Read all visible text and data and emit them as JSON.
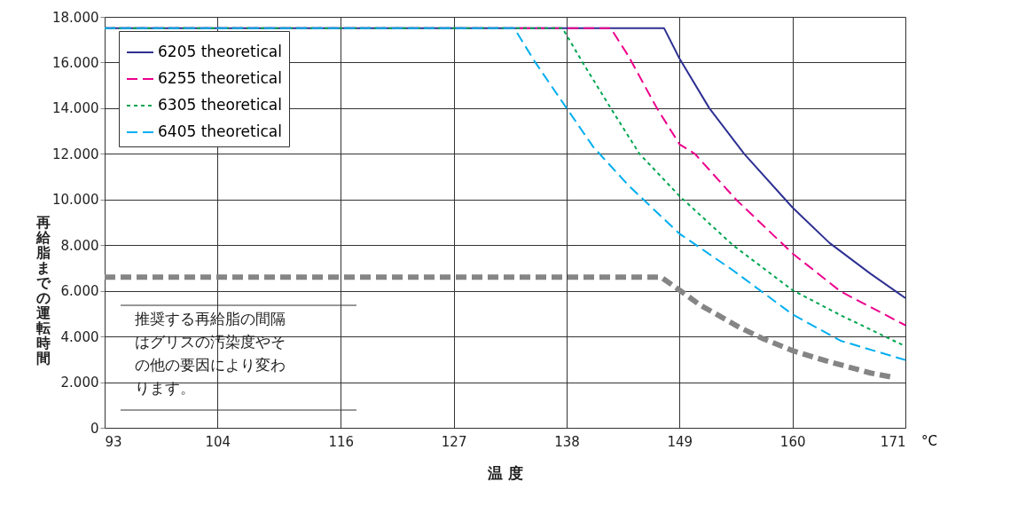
{
  "chart_data": {
    "type": "line",
    "xlabel": "温 度",
    "ylabel": "再給脂までの運転時間",
    "xlim": [
      93,
      171
    ],
    "xticks": [
      93,
      104,
      116,
      127,
      138,
      149,
      160,
      171
    ],
    "ylim": [
      0,
      18000
    ],
    "yticks": [
      {
        "value": 0,
        "label": "0"
      },
      {
        "value": 2000,
        "label": "2.000"
      },
      {
        "value": 4000,
        "label": "4.000"
      },
      {
        "value": 6000,
        "label": "6.000"
      },
      {
        "value": 8000,
        "label": "8.000"
      },
      {
        "value": 10000,
        "label": "10.000"
      },
      {
        "value": 12000,
        "label": "12.000"
      },
      {
        "value": 14000,
        "label": "14.000"
      },
      {
        "value": 16000,
        "label": "16.000"
      },
      {
        "value": 18000,
        "label": "18.000"
      }
    ],
    "grid": true,
    "legend": "top left",
    "marker": "none",
    "annotations": [
      "推奨する再給脂の間隔はグリスの汚染度やその他の要因により変わります。",
      "°C"
    ],
    "series": [
      {
        "name": "6205 theoretical",
        "color": "#2e3192",
        "line_style": "solid",
        "x": [
          93,
          147.5,
          149,
          151.9,
          155.3,
          159.3,
          160,
          163.6,
          167.6,
          171
        ],
        "values": [
          17500,
          17500,
          16170,
          14000,
          12000,
          10000,
          9650,
          8100,
          6750,
          5680
        ]
      },
      {
        "name": "6255 theoretical",
        "color": "#ec008c",
        "line_style": "dashed",
        "x": [
          93,
          142.3,
          144,
          146.8,
          149,
          150.5,
          154.5,
          160,
          164.7,
          171
        ],
        "values": [
          17500,
          17500,
          16300,
          14000,
          12420,
          12000,
          10000,
          7640,
          5970,
          4490
        ]
      },
      {
        "name": "6305 theoretical",
        "color": "#00a651",
        "line_style": "dotted",
        "x": [
          93,
          137.6,
          139.7,
          142.3,
          145.1,
          149,
          154.2,
          160,
          164.7,
          171
        ],
        "values": [
          17500,
          17500,
          15900,
          14000,
          12000,
          10150,
          8000,
          6030,
          4930,
          3570
        ]
      },
      {
        "name": "6405 theoretical",
        "color": "#00aeef",
        "line_style": "dashed",
        "x": [
          93,
          132.9,
          134.9,
          138,
          140.6,
          144,
          149,
          154.2,
          160,
          164.7,
          171
        ],
        "values": [
          17500,
          17500,
          16040,
          14000,
          12300,
          10630,
          8500,
          6900,
          4970,
          3810,
          2970
        ]
      },
      {
        "color": "#858585",
        "line_style": "dashed",
        "x": [
          93,
          147.2,
          149,
          151,
          154.8,
          157,
          160,
          163.3,
          167.6,
          169.7
        ],
        "values": [
          6600,
          6600,
          6030,
          5380,
          4410,
          3930,
          3380,
          2930,
          2400,
          2220
        ]
      }
    ]
  }
}
